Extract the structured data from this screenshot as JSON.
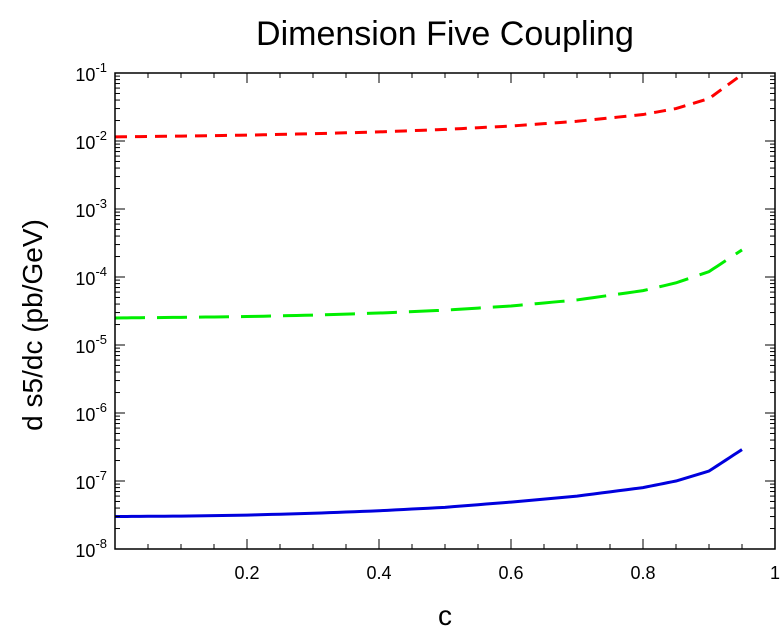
{
  "chart_data": {
    "type": "line",
    "title": "Dimension Five Coupling",
    "xlabel": "c",
    "ylabel": "d s5/dc (pb/GeV)",
    "xlim": [
      0,
      1
    ],
    "ylim": [
      1e-08,
      0.1
    ],
    "yscale": "log",
    "grid": false,
    "legend": "none",
    "x_ticks": [
      0.2,
      0.4,
      0.6,
      0.8,
      1
    ],
    "x_tick_labels": [
      "0.2",
      "0.4",
      "0.6",
      "0.8",
      "1"
    ],
    "y_ticks": [
      {
        "value": 1e-08,
        "base": "10",
        "exp": "-8"
      },
      {
        "value": 1e-07,
        "base": "10",
        "exp": "-7"
      },
      {
        "value": 1e-06,
        "base": "10",
        "exp": "-6"
      },
      {
        "value": 1e-05,
        "base": "10",
        "exp": "-5"
      },
      {
        "value": 0.0001,
        "base": "10",
        "exp": "-4"
      },
      {
        "value": 0.001,
        "base": "10",
        "exp": "-3"
      },
      {
        "value": 0.01,
        "base": "10",
        "exp": "-2"
      },
      {
        "value": 0.1,
        "base": "10",
        "exp": "-1"
      }
    ],
    "series": [
      {
        "color": "#ff0000",
        "dash": "short",
        "x": [
          0,
          0.1,
          0.2,
          0.3,
          0.4,
          0.5,
          0.6,
          0.7,
          0.8,
          0.85,
          0.9,
          0.95
        ],
        "y": [
          0.0115,
          0.0118,
          0.0122,
          0.0128,
          0.0136,
          0.0148,
          0.0166,
          0.0195,
          0.0245,
          0.03,
          0.042,
          0.095
        ]
      },
      {
        "color": "#00ee00",
        "dash": "long",
        "x": [
          0,
          0.1,
          0.2,
          0.3,
          0.4,
          0.5,
          0.6,
          0.7,
          0.8,
          0.85,
          0.9,
          0.95
        ],
        "y": [
          2.5e-05,
          2.55e-05,
          2.62e-05,
          2.75e-05,
          2.95e-05,
          3.25e-05,
          3.75e-05,
          4.6e-05,
          6.3e-05,
          8.2e-05,
          0.00012,
          0.00025
        ]
      },
      {
        "color": "#0000dd",
        "dash": "solid",
        "x": [
          0,
          0.1,
          0.2,
          0.3,
          0.4,
          0.5,
          0.6,
          0.7,
          0.8,
          0.85,
          0.9,
          0.95
        ],
        "y": [
          3e-08,
          3.05e-08,
          3.15e-08,
          3.35e-08,
          3.65e-08,
          4.1e-08,
          4.9e-08,
          6e-08,
          8e-08,
          1e-07,
          1.4e-07,
          2.9e-07
        ]
      }
    ]
  }
}
